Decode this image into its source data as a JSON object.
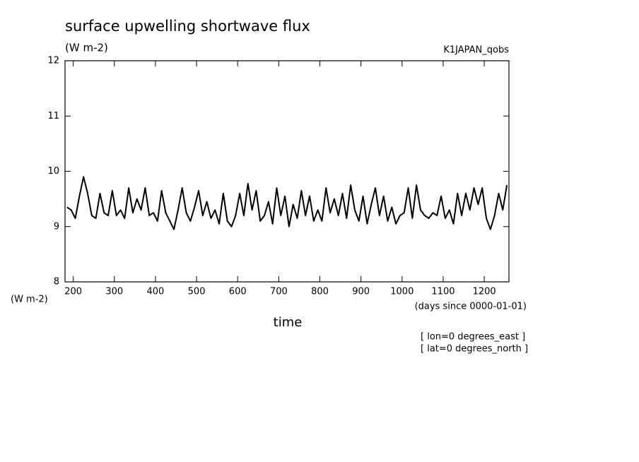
{
  "chart_data": {
    "type": "line",
    "title": "surface upwelling shortwave flux",
    "y_units": "(W m-2)",
    "dataset": "K1JAPAN_qobs",
    "x_label": "time",
    "x_units": "(days since 0000-01-01)",
    "notes": [
      "[ lon=0 degrees_east ]",
      "[ lat=0 degrees_north ]"
    ],
    "xlim": [
      180,
      1260
    ],
    "ylim": [
      8,
      12
    ],
    "xticks": [
      200,
      300,
      400,
      500,
      600,
      700,
      800,
      900,
      1000,
      1100,
      1200
    ],
    "yticks": [
      8,
      9,
      10,
      11,
      12
    ],
    "color": "#000000",
    "x": [
      185,
      195,
      205,
      215,
      225,
      235,
      245,
      255,
      265,
      275,
      285,
      295,
      305,
      315,
      325,
      335,
      345,
      355,
      365,
      375,
      385,
      395,
      405,
      415,
      425,
      435,
      445,
      455,
      465,
      475,
      485,
      495,
      505,
      515,
      525,
      535,
      545,
      555,
      565,
      575,
      585,
      595,
      605,
      615,
      625,
      635,
      645,
      655,
      665,
      675,
      685,
      695,
      705,
      715,
      725,
      735,
      745,
      755,
      765,
      775,
      785,
      795,
      805,
      815,
      825,
      835,
      845,
      855,
      865,
      875,
      885,
      895,
      905,
      915,
      925,
      935,
      945,
      955,
      965,
      975,
      985,
      995,
      1005,
      1015,
      1025,
      1035,
      1045,
      1055,
      1065,
      1075,
      1085,
      1095,
      1105,
      1115,
      1125,
      1135,
      1145,
      1155,
      1165,
      1175,
      1185,
      1195,
      1205,
      1215,
      1225,
      1235,
      1245,
      1255
    ],
    "values": [
      9.35,
      9.3,
      9.15,
      9.55,
      9.9,
      9.6,
      9.2,
      9.15,
      9.6,
      9.25,
      9.2,
      9.65,
      9.2,
      9.3,
      9.15,
      9.7,
      9.25,
      9.5,
      9.3,
      9.7,
      9.2,
      9.25,
      9.1,
      9.65,
      9.25,
      9.1,
      8.95,
      9.3,
      9.7,
      9.25,
      9.1,
      9.35,
      9.65,
      9.2,
      9.45,
      9.15,
      9.3,
      9.05,
      9.6,
      9.1,
      9.0,
      9.2,
      9.6,
      9.2,
      9.78,
      9.3,
      9.65,
      9.1,
      9.2,
      9.45,
      9.05,
      9.7,
      9.2,
      9.55,
      9.0,
      9.4,
      9.15,
      9.65,
      9.2,
      9.55,
      9.1,
      9.3,
      9.1,
      9.7,
      9.25,
      9.5,
      9.2,
      9.6,
      9.15,
      9.75,
      9.3,
      9.1,
      9.55,
      9.05,
      9.4,
      9.7,
      9.2,
      9.55,
      9.1,
      9.35,
      9.05,
      9.2,
      9.25,
      9.7,
      9.15,
      9.75,
      9.3,
      9.2,
      9.15,
      9.25,
      9.2,
      9.55,
      9.15,
      9.3,
      9.05,
      9.6,
      9.2,
      9.6,
      9.3,
      9.7,
      9.4,
      9.7,
      9.15,
      8.95,
      9.2,
      9.6,
      9.3,
      9.75
    ]
  }
}
